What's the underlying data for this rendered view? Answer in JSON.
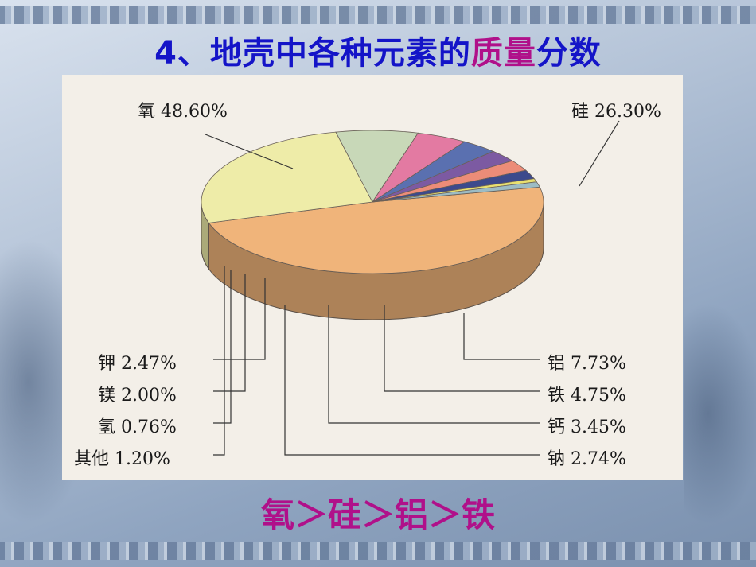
{
  "title": {
    "prefix": "4、地壳中各种元素的",
    "highlight": "质量",
    "suffix": "分数"
  },
  "conclusion": "氧＞硅＞铝＞铁",
  "chart_data": {
    "type": "pie",
    "title": "",
    "unit": "%",
    "slices": [
      {
        "label": "氧 48.60%",
        "name": "氧",
        "value": 48.6,
        "color": "#f0b47a"
      },
      {
        "label": "硅 26.30%",
        "name": "硅",
        "value": 26.3,
        "color": "#eeeca8"
      },
      {
        "label": "铝 7.73%",
        "name": "铝",
        "value": 7.73,
        "color": "#c8d8b8"
      },
      {
        "label": "铁 4.75%",
        "name": "铁",
        "value": 4.75,
        "color": "#e37aa2"
      },
      {
        "label": "钙 3.45%",
        "name": "钙",
        "value": 3.45,
        "color": "#5a70b0"
      },
      {
        "label": "钠 2.74%",
        "name": "钠",
        "value": 2.74,
        "color": "#7c5aa2"
      },
      {
        "label": "钾 2.47%",
        "name": "钾",
        "value": 2.47,
        "color": "#ec8c78"
      },
      {
        "label": "镁 2.00%",
        "name": "镁",
        "value": 2.0,
        "color": "#3c4a8c"
      },
      {
        "label": "氢 0.76%",
        "name": "氢",
        "value": 0.76,
        "color": "#e8e070"
      },
      {
        "label": "其他 1.20%",
        "name": "其他",
        "value": 1.2,
        "color": "#9cbcc4"
      }
    ],
    "legend": "none"
  }
}
